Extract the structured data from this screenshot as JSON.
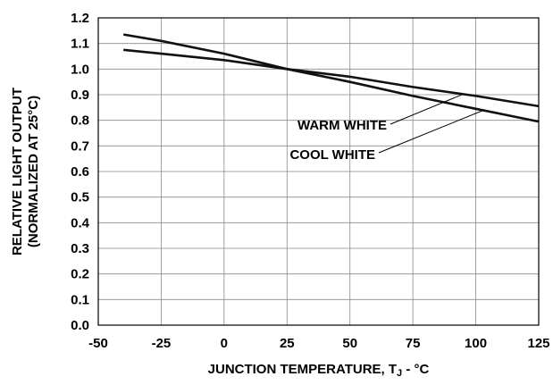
{
  "chart_data": {
    "type": "line",
    "title": "",
    "xlabel": "JUNCTION TEMPERATURE, T",
    "xlabel_subscript": "J",
    "xlabel_suffix": " - °C",
    "ylabel_line1": "RELATIVE LIGHT OUTPUT",
    "ylabel_line2": "(NORMALIZED AT 25°C)",
    "xlim": [
      -50,
      125
    ],
    "ylim": [
      0.0,
      1.2
    ],
    "x_ticks": [
      -50,
      -25,
      0,
      25,
      50,
      75,
      100,
      125
    ],
    "x_tick_labels": [
      "-50",
      "-25",
      "0",
      "25",
      "50",
      "75",
      "100",
      "125"
    ],
    "y_ticks": [
      0.0,
      0.1,
      0.2,
      0.3,
      0.4,
      0.5,
      0.6,
      0.7,
      0.8,
      0.9,
      1.0,
      1.1,
      1.2
    ],
    "y_tick_labels": [
      "0.0",
      "0.1",
      "0.2",
      "0.3",
      "0.4",
      "0.5",
      "0.6",
      "0.7",
      "0.8",
      "0.9",
      "1.0",
      "1.1",
      "1.2"
    ],
    "grid": true,
    "series": [
      {
        "name": "WARM WHITE",
        "x": [
          -40,
          -25,
          0,
          25,
          50,
          75,
          100,
          125
        ],
        "y": [
          1.075,
          1.06,
          1.035,
          1.0,
          0.97,
          0.93,
          0.895,
          0.855
        ]
      },
      {
        "name": "COOL WHITE",
        "x": [
          -40,
          -25,
          0,
          25,
          50,
          75,
          100,
          125
        ],
        "y": [
          1.135,
          1.11,
          1.06,
          1.0,
          0.95,
          0.895,
          0.845,
          0.795
        ]
      }
    ],
    "annotations": [
      {
        "text": "WARM WHITE",
        "series": "WARM WHITE",
        "points_to_x": 95
      },
      {
        "text": "COOL WHITE",
        "series": "COOL WHITE",
        "points_to_x": 103
      }
    ]
  }
}
